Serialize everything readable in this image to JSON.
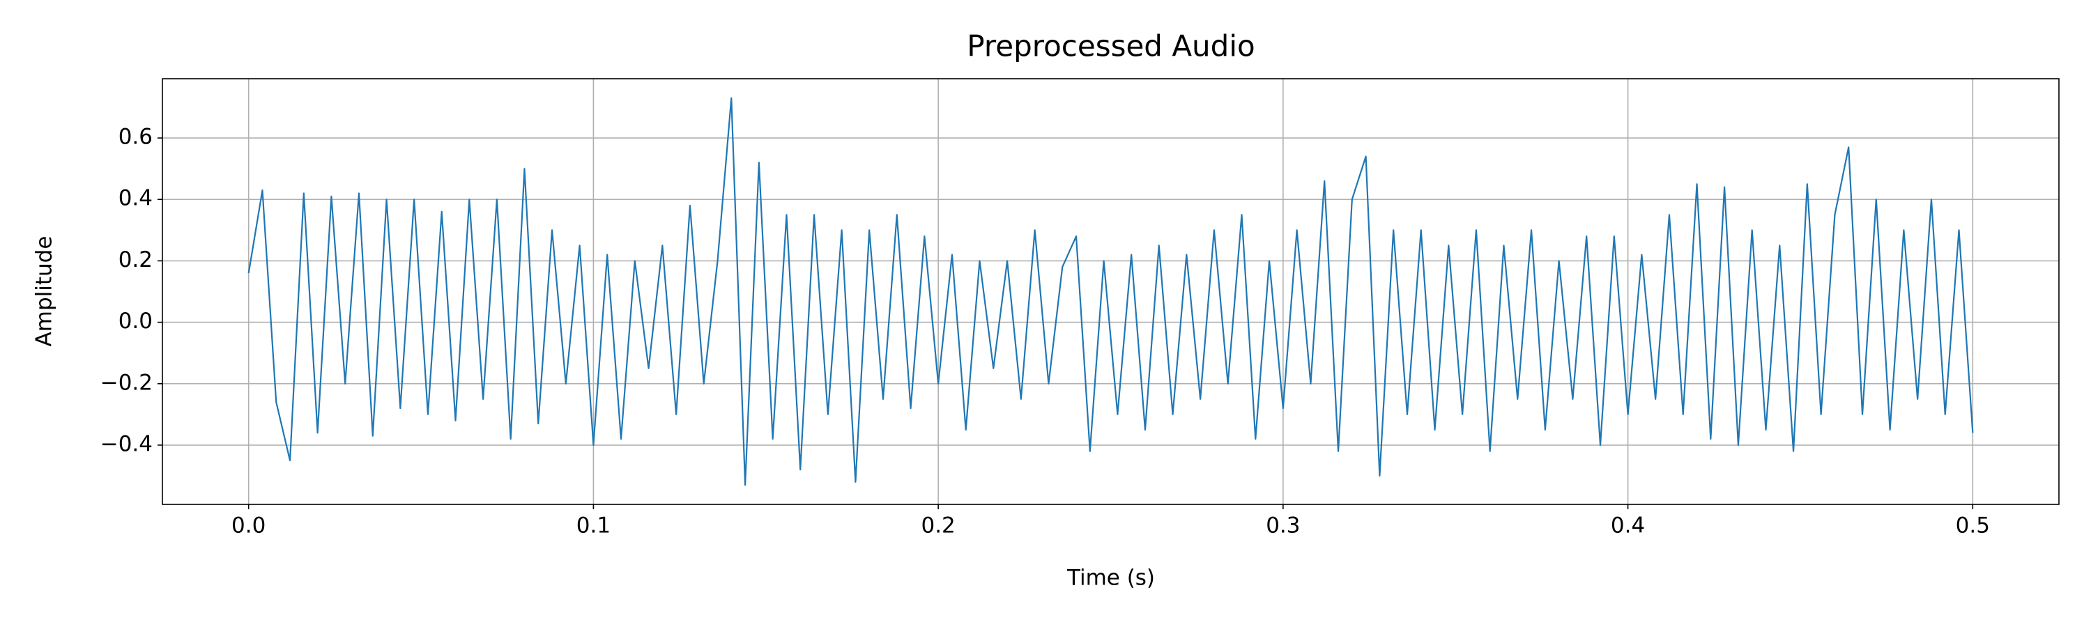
{
  "chart_data": {
    "type": "line",
    "title": "Preprocessed Audio",
    "x_label": "Time (s)",
    "y_label": "Amplitude",
    "color": "#1f77b4",
    "grid": true,
    "xlim": [
      -0.025,
      0.525
    ],
    "ylim": [
      -0.593,
      0.793
    ],
    "xticks": [
      {
        "value": 0,
        "label": "0.0"
      },
      0.1,
      0.2,
      0.3,
      0.4,
      0.5
    ],
    "yticks": [
      {
        "value": -0.4,
        "label": "−0.4"
      },
      {
        "value": -0.2,
        "label": "−0.2"
      },
      {
        "value": 0,
        "label": "0.0"
      },
      0.2,
      0.4,
      0.6
    ],
    "x": [
      0,
      0.004,
      0.008,
      0.012,
      0.016,
      0.02,
      0.024,
      0.028,
      0.032,
      0.036,
      0.04,
      0.044,
      0.048,
      0.052,
      0.056,
      0.06,
      0.064,
      0.068,
      0.072,
      0.076,
      0.08,
      0.084,
      0.088,
      0.092,
      0.096,
      0.1,
      0.104,
      0.108,
      0.112,
      0.116,
      0.12,
      0.124,
      0.128,
      0.132,
      0.136,
      0.14,
      0.144,
      0.148,
      0.152,
      0.156,
      0.16,
      0.164,
      0.168,
      0.172,
      0.176,
      0.18,
      0.184,
      0.188,
      0.192,
      0.196,
      0.2,
      0.204,
      0.208,
      0.212,
      0.216,
      0.22,
      0.224,
      0.228,
      0.232,
      0.236,
      0.24,
      0.244,
      0.248,
      0.252,
      0.256,
      0.26,
      0.264,
      0.268,
      0.272,
      0.276,
      0.28,
      0.284,
      0.288,
      0.292,
      0.296,
      0.3,
      0.304,
      0.308,
      0.312,
      0.316,
      0.32,
      0.324,
      0.328,
      0.332,
      0.336,
      0.34,
      0.344,
      0.348,
      0.352,
      0.356,
      0.36,
      0.364,
      0.368,
      0.372,
      0.376,
      0.38,
      0.384,
      0.388,
      0.392,
      0.396,
      0.4,
      0.404,
      0.408,
      0.412,
      0.416,
      0.42,
      0.424,
      0.428,
      0.432,
      0.436,
      0.44,
      0.444,
      0.448,
      0.452,
      0.456,
      0.46,
      0.464,
      0.468,
      0.472,
      0.476,
      0.48,
      0.484,
      0.488,
      0.492,
      0.496,
      0.5
    ],
    "values": [
      0.16,
      0.43,
      -0.26,
      -0.45,
      0.42,
      -0.36,
      0.41,
      -0.2,
      0.42,
      -0.37,
      0.4,
      -0.28,
      0.4,
      -0.3,
      0.36,
      -0.32,
      0.4,
      -0.25,
      0.4,
      -0.38,
      0.5,
      -0.33,
      0.3,
      -0.2,
      0.25,
      -0.4,
      0.22,
      -0.38,
      0.2,
      -0.15,
      0.25,
      -0.3,
      0.38,
      -0.2,
      0.2,
      0.73,
      -0.53,
      0.52,
      -0.38,
      0.35,
      -0.48,
      0.35,
      -0.3,
      0.3,
      -0.52,
      0.3,
      -0.25,
      0.35,
      -0.28,
      0.28,
      -0.2,
      0.22,
      -0.35,
      0.2,
      -0.15,
      0.2,
      -0.25,
      0.3,
      -0.2,
      0.18,
      0.28,
      -0.42,
      0.2,
      -0.3,
      0.22,
      -0.35,
      0.25,
      -0.3,
      0.22,
      -0.25,
      0.3,
      -0.2,
      0.35,
      -0.38,
      0.2,
      -0.28,
      0.3,
      -0.2,
      0.46,
      -0.42,
      0.4,
      0.54,
      -0.5,
      0.3,
      -0.3,
      0.3,
      -0.35,
      0.25,
      -0.3,
      0.3,
      -0.42,
      0.25,
      -0.25,
      0.3,
      -0.35,
      0.2,
      -0.25,
      0.28,
      -0.4,
      0.28,
      -0.3,
      0.22,
      -0.25,
      0.35,
      -0.3,
      0.45,
      -0.38,
      0.44,
      -0.4,
      0.3,
      -0.35,
      0.25,
      -0.42,
      0.45,
      -0.3,
      0.35,
      0.57,
      -0.3,
      0.4,
      -0.35,
      0.3,
      -0.25,
      0.4,
      -0.3,
      0.3,
      -0.36
    ]
  }
}
